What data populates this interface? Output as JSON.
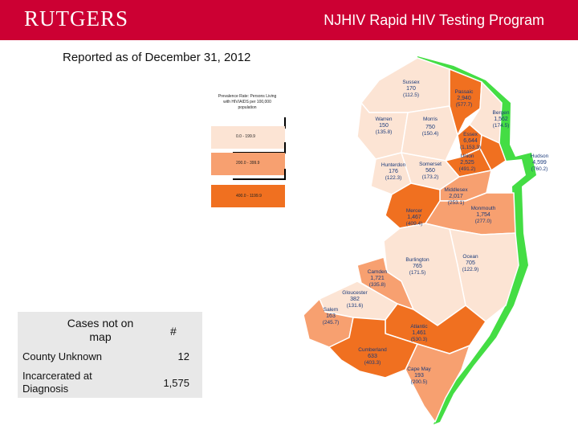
{
  "header": {
    "logo_text": "RUTGERS",
    "title": "NJHIV Rapid HIV Testing Program"
  },
  "subtitle": "Reported as of December 31, 2012",
  "legend": {
    "title": "Prevalence Rate: Persons Living with HIV/AIDS per 100,000 population",
    "classes": [
      {
        "label": "0.0 - 199.9",
        "color": "#fce4d4"
      },
      {
        "label": "200.0 - 399.9",
        "color": "#f7a070"
      },
      {
        "label": "400.0 - 1199.9",
        "color": "#f07020"
      }
    ]
  },
  "cases_table": {
    "header_label": "Cases not on map",
    "header_value": "#",
    "rows": [
      {
        "label": "County Unknown",
        "value": "12"
      },
      {
        "label": "Incarcerated at Diagnosis",
        "value": "1,575"
      }
    ]
  },
  "counties": [
    {
      "name": "Sussex",
      "cases": "170",
      "rate": "(112.5)",
      "color": "#fce4d4"
    },
    {
      "name": "Passaic",
      "cases": "2,940",
      "rate": "(577.7)",
      "color": "#f07020"
    },
    {
      "name": "Bergen",
      "cases": "1,562",
      "rate": "(174.5)",
      "color": "#fce4d4"
    },
    {
      "name": "Warren",
      "cases": "150",
      "rate": "(135.8)",
      "color": "#fce4d4"
    },
    {
      "name": "Morris",
      "cases": "750",
      "rate": "(150.4)",
      "color": "#fce4d4"
    },
    {
      "name": "Essex",
      "cases": "6,644",
      "rate": "(1,153.3)",
      "color": "#f07020"
    },
    {
      "name": "Hudson",
      "cases": "4,599",
      "rate": "(760.2)",
      "color": "#f07020"
    },
    {
      "name": "Union",
      "cases": "2,525",
      "rate": "(491.2)",
      "color": "#f07020"
    },
    {
      "name": "Hunterdon",
      "cases": "176",
      "rate": "(122.3)",
      "color": "#fce4d4"
    },
    {
      "name": "Somerset",
      "cases": "560",
      "rate": "(173.2)",
      "color": "#fce4d4"
    },
    {
      "name": "Middlesex",
      "cases": "2,017",
      "rate": "(253.1)",
      "color": "#f7a070"
    },
    {
      "name": "Mercer",
      "cases": "1,467",
      "rate": "(409.4)",
      "color": "#f07020"
    },
    {
      "name": "Monmouth",
      "cases": "1,754",
      "rate": "(277.0)",
      "color": "#f7a070"
    },
    {
      "name": "Ocean",
      "cases": "705",
      "rate": "(122.9)",
      "color": "#fce4d4"
    },
    {
      "name": "Burlington",
      "cases": "765",
      "rate": "(171.5)",
      "color": "#fce4d4"
    },
    {
      "name": "Camden",
      "cases": "1,721",
      "rate": "(335.8)",
      "color": "#f7a070"
    },
    {
      "name": "Gloucester",
      "cases": "382",
      "rate": "(131.6)",
      "color": "#fce4d4"
    },
    {
      "name": "Salem",
      "cases": "163",
      "rate": "(245.7)",
      "color": "#f7a070"
    },
    {
      "name": "Atlantic",
      "cases": "1,461",
      "rate": "(530.3)",
      "color": "#f07020"
    },
    {
      "name": "Cumberland",
      "cases": "633",
      "rate": "(403.3)",
      "color": "#f07020"
    },
    {
      "name": "Cape May",
      "cases": "193",
      "rate": "(200.5)",
      "color": "#f7a070"
    }
  ],
  "colors": {
    "header_bg": "#cc0033",
    "coast": "#44dd44",
    "label_text": "#1a3a7a"
  }
}
